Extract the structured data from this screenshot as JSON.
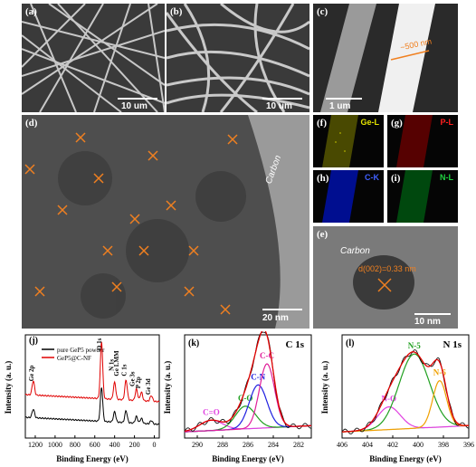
{
  "panels": {
    "a": {
      "label": "(a)",
      "scale": "10 um"
    },
    "b": {
      "label": "(b)",
      "scale": "10 um"
    },
    "c": {
      "label": "(c)",
      "scale": "1 um",
      "measure": "~500 nm"
    },
    "d": {
      "label": "(d)",
      "scale": "20 nm",
      "annotation": "Carbon"
    },
    "e": {
      "label": "(e)",
      "scale": "10 nm",
      "annotation": "Carbon",
      "dspacing": "d(002)=0.33 nm"
    },
    "f": {
      "label": "(f)",
      "element": "Ge-L",
      "color": "#e6e600"
    },
    "g": {
      "label": "(g)",
      "element": "P-L",
      "color": "#ff2020"
    },
    "h": {
      "label": "(h)",
      "element": "C-K",
      "color": "#4060ff"
    },
    "i": {
      "label": "(i)",
      "element": "N-L",
      "color": "#20d040"
    }
  },
  "chart_data": [
    {
      "type": "line",
      "panel": "(j)",
      "xlabel": "Binding Energy (eV)",
      "ylabel": "Intensity (a. u.)",
      "xlim": [
        1300,
        -50
      ],
      "xticks": [
        1200,
        1000,
        800,
        600,
        400,
        200,
        0
      ],
      "legend": "top-left",
      "series": [
        {
          "name": "pure GeP5 powder",
          "color": "#000000"
        },
        {
          "name": "GeP5@C-NF",
          "color": "#e00000"
        }
      ],
      "annotations": [
        "Ge 2p",
        "O 1s",
        "N 1s",
        "Ge LMM",
        "C 1s",
        "Ge 3s",
        "P 2p",
        "Ge 3d"
      ]
    },
    {
      "type": "line",
      "panel": "(k)",
      "title": "C 1s",
      "xlabel": "Binding Energy (eV)",
      "ylabel": "Intensity (a. u.)",
      "xlim": [
        291,
        281
      ],
      "xticks": [
        290,
        288,
        286,
        284,
        282
      ],
      "series": [
        {
          "name": "C=O",
          "center": 288.9,
          "height": 0.1,
          "width": 0.9,
          "color": "#e040e0"
        },
        {
          "name": "C-O",
          "center": 286.2,
          "height": 0.22,
          "width": 0.8,
          "color": "#20a020"
        },
        {
          "name": "C-N",
          "center": 285.2,
          "height": 0.42,
          "width": 0.7,
          "color": "#2020e0"
        },
        {
          "name": "C-C",
          "center": 284.5,
          "height": 0.62,
          "width": 0.6,
          "color": "#e0209a"
        }
      ]
    },
    {
      "type": "line",
      "panel": "(l)",
      "title": "N 1s",
      "xlabel": "Binding Energy (eV)",
      "ylabel": "Intensity (a. u.)",
      "xlim": [
        406,
        396
      ],
      "xticks": [
        406,
        404,
        402,
        400,
        398,
        396
      ],
      "series": [
        {
          "name": "N-O",
          "center": 402.3,
          "height": 0.22,
          "width": 0.9,
          "color": "#e040e0"
        },
        {
          "name": "N-5",
          "center": 400.3,
          "height": 0.72,
          "width": 1.2,
          "color": "#20a020"
        },
        {
          "name": "N-6",
          "center": 398.3,
          "height": 0.45,
          "width": 0.55,
          "color": "#f0a000"
        }
      ]
    }
  ]
}
